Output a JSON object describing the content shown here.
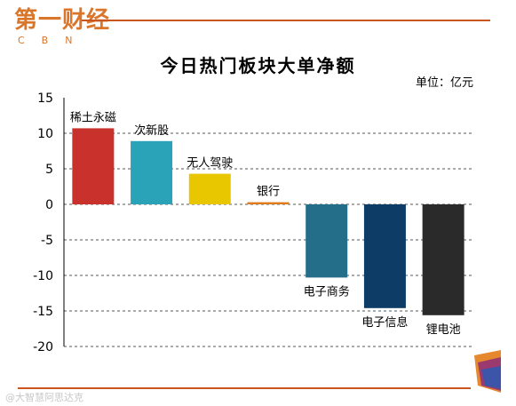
{
  "logo": {
    "cn": "第一财经",
    "en": "CBN"
  },
  "watermark": "@大智慧阿思达克",
  "chart_data": {
    "type": "bar",
    "title": "今日热门板块大单净额",
    "unit": "单位：亿元",
    "categories": [
      "稀土永磁",
      "次新股",
      "无人驾驶",
      "银行",
      "电子商务",
      "电子信息",
      "锂电池"
    ],
    "values": [
      10.7,
      8.9,
      4.3,
      0.3,
      -10.3,
      -14.6,
      -15.6
    ],
    "colors": [
      "#c9312c",
      "#2aa3b8",
      "#e8c600",
      "#e07a1c",
      "#256e8a",
      "#0d3d66",
      "#2a2a2a"
    ],
    "ylim": [
      -20,
      15
    ],
    "yticks": [
      15,
      10,
      5,
      0,
      -5,
      -10,
      -15,
      -20
    ],
    "grid": true,
    "legend": "none"
  }
}
